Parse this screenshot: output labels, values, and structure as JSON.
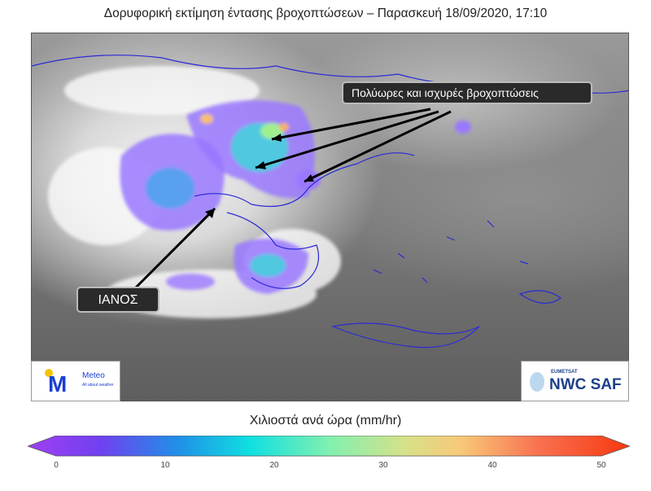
{
  "title": "Δορυφορική εκτίμηση έντασης βροχοπτώσεων – Παρασκευή 18/09/2020, 17:10",
  "annotations": {
    "rain_callout": "Πολύωρες και ισχυρές βροχοπτώσεις",
    "storm_callout": "ΙΑΝΟΣ"
  },
  "logos": {
    "left": {
      "name": "Meteo",
      "tagline": "All about weather",
      "color": "#1a3fd1",
      "dot_color": "#f5c400"
    },
    "right": {
      "small": "EUMETSAT",
      "name": "NWC SAF",
      "color": "#1d3f8a"
    }
  },
  "colorbar": {
    "label": "Χιλιοστά ανά ώρα (mm/hr)",
    "ticks": [
      "0",
      "10",
      "20",
      "30",
      "40",
      "50"
    ],
    "range": [
      0,
      50
    ],
    "colors": [
      "#8a3cf0",
      "#4a6cf0",
      "#10b0e8",
      "#14e0d8",
      "#80f0a0",
      "#d0e080",
      "#f8c070",
      "#f86040",
      "#f83010"
    ]
  }
}
